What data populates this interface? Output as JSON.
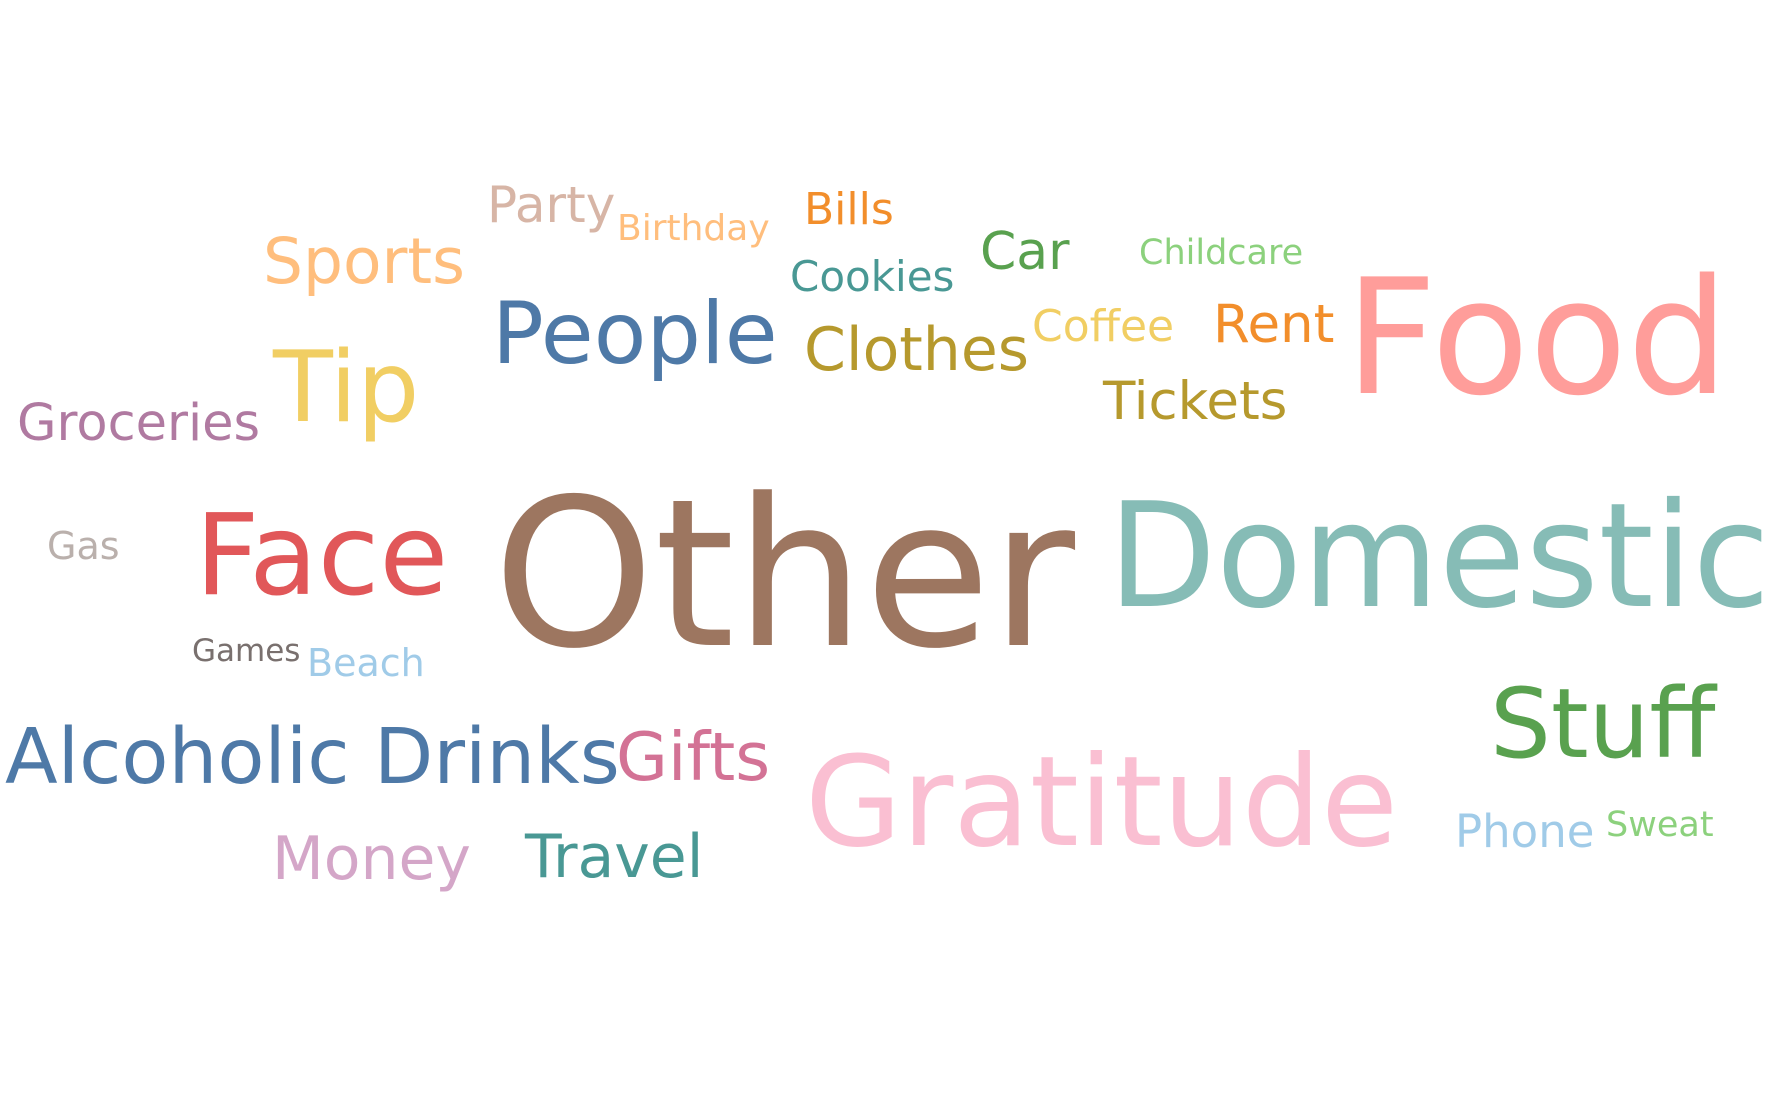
{
  "chart_data": {
    "type": "wordcloud",
    "words": [
      {
        "text": "Other",
        "color": "#9d7660"
      },
      {
        "text": "Domestic",
        "color": "#86bcb6"
      },
      {
        "text": "Food",
        "color": "#ff9d9a"
      },
      {
        "text": "Gratitude",
        "color": "#fabfd2"
      },
      {
        "text": "Face",
        "color": "#e15759"
      },
      {
        "text": "Stuff",
        "color": "#59a14f"
      },
      {
        "text": "People",
        "color": "#4e79a7"
      },
      {
        "text": "Tip",
        "color": "#f1ce63"
      },
      {
        "text": "Alcoholic Drinks",
        "color": "#4e79a7"
      },
      {
        "text": "Gifts",
        "color": "#d37295"
      },
      {
        "text": "Clothes",
        "color": "#b6992d"
      },
      {
        "text": "Sports",
        "color": "#ffbe7d"
      },
      {
        "text": "Travel",
        "color": "#499894"
      },
      {
        "text": "Money",
        "color": "#d4a6c8"
      },
      {
        "text": "Tickets",
        "color": "#b6992d"
      },
      {
        "text": "Rent",
        "color": "#f28e2b"
      },
      {
        "text": "Groceries",
        "color": "#b07aa1"
      },
      {
        "text": "Party",
        "color": "#d7b5a6"
      },
      {
        "text": "Phone",
        "color": "#a0cbe8"
      },
      {
        "text": "Car",
        "color": "#59a14f"
      },
      {
        "text": "Coffee",
        "color": "#f1ce63"
      },
      {
        "text": "Cookies",
        "color": "#499894"
      },
      {
        "text": "Bills",
        "color": "#f28e2b"
      },
      {
        "text": "Beach",
        "color": "#a0cbe8"
      },
      {
        "text": "Gas",
        "color": "#bab0ac"
      },
      {
        "text": "Birthday",
        "color": "#ffbe7d"
      },
      {
        "text": "Childcare",
        "color": "#8cd17d"
      },
      {
        "text": "Sweat",
        "color": "#8cd17d"
      },
      {
        "text": "Games",
        "color": "#79706e"
      }
    ]
  }
}
